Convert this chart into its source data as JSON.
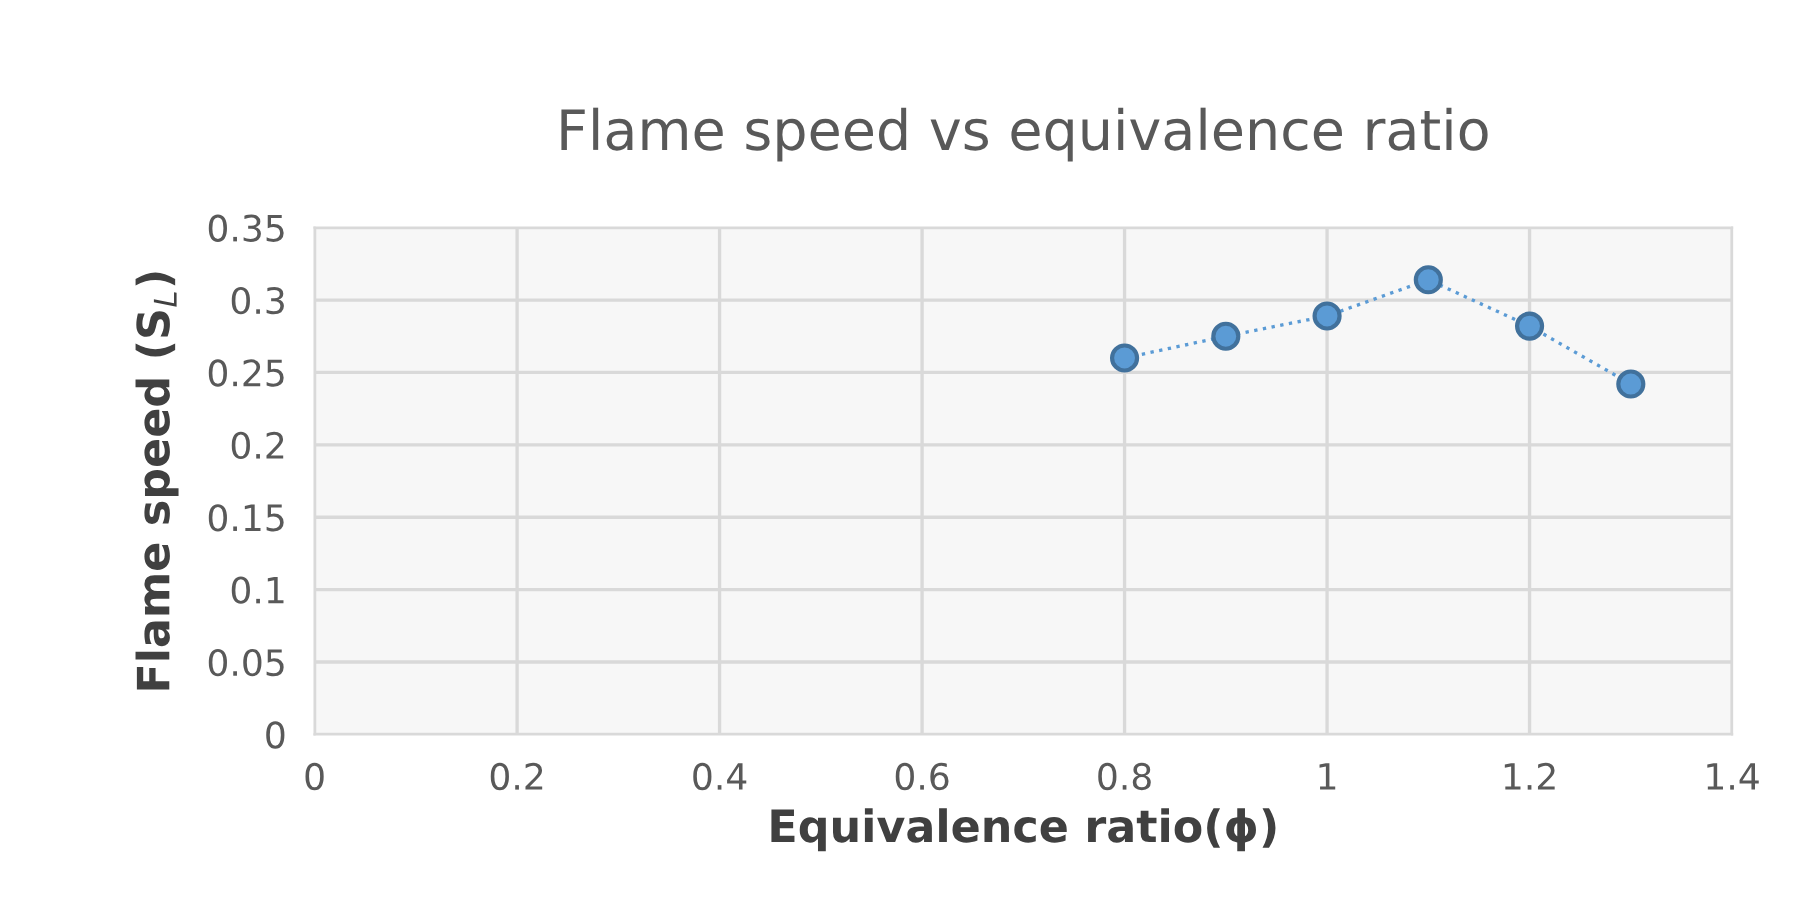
{
  "chart_data": {
    "type": "line",
    "title": "Flame speed vs equivalence ratio",
    "xlabel": "Equivalence ratio(ϕ)",
    "ylabel": "Flame speed (S$_{L}$)",
    "x": [
      0.8,
      0.9,
      1.0,
      1.1,
      1.2,
      1.3
    ],
    "series": [
      {
        "color": "#5b9bd5",
        "values": [
          0.26,
          0.275,
          0.289,
          0.314,
          0.282,
          0.242
        ]
      }
    ],
    "xlim": [
      0,
      1.4
    ],
    "xticks": [
      0,
      0.2,
      0.4,
      0.6,
      0.8,
      1,
      1.2,
      1.4
    ],
    "ylim": [
      0,
      0.35
    ],
    "yticks": [
      0,
      0.05,
      0.1,
      0.15,
      0.2,
      0.25,
      0.3,
      0.35
    ],
    "grid": true,
    "marker": "circle",
    "line_style": "dotted",
    "legend": false
  }
}
